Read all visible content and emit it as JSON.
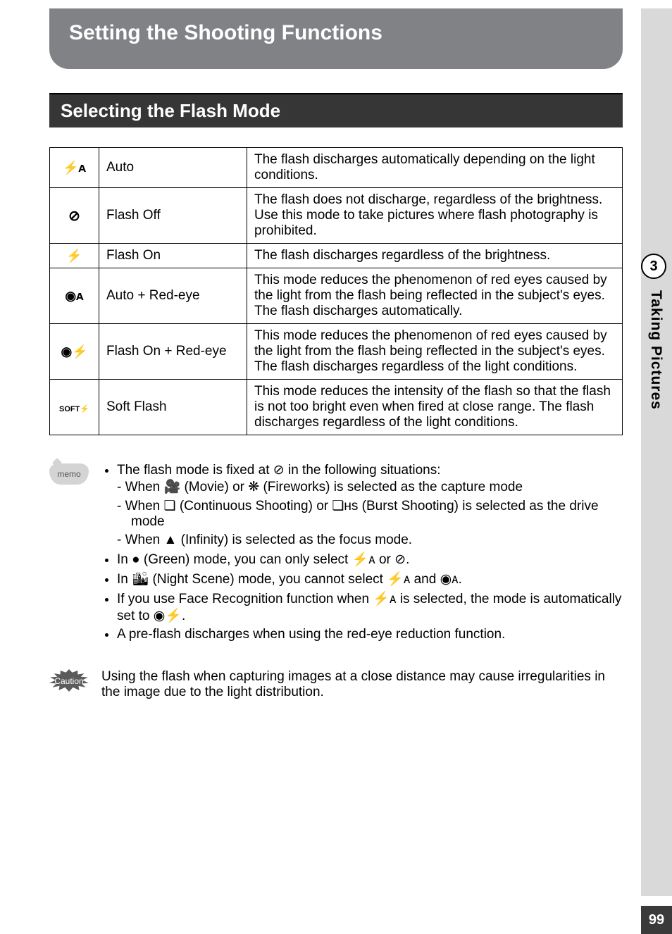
{
  "page": {
    "title": "Setting the Shooting Functions",
    "section": "Selecting the Flash Mode",
    "chapter_num": "3",
    "side_label": "Taking Pictures",
    "page_number": "99"
  },
  "table": {
    "rows": [
      {
        "icon": "⚡ᴀ",
        "name": "Auto",
        "desc": "The flash discharges automatically depending on the light conditions."
      },
      {
        "icon": "⊘",
        "name": "Flash Off",
        "desc": "The flash does not discharge, regardless of the brightness. Use this mode to take pictures where flash photography is prohibited."
      },
      {
        "icon": "⚡",
        "name": "Flash On",
        "desc": "The flash discharges regardless of the brightness."
      },
      {
        "icon": "◉ᴀ",
        "name": "Auto + Red-eye",
        "desc": "This mode reduces the phenomenon of red eyes caused by the light from the flash being reflected in the subject's eyes. The flash discharges automatically."
      },
      {
        "icon": "◉⚡",
        "name": "Flash On + Red-eye",
        "desc": "This mode reduces the phenomenon of red eyes caused by the light from the flash being reflected in the subject's eyes. The flash discharges regardless of the light conditions."
      },
      {
        "icon": "SOFT⚡",
        "name": "Soft Flash",
        "desc": "This mode reduces the intensity of the flash so that the flash is not too bright even when fired at close range. The flash discharges regardless of the light conditions."
      }
    ]
  },
  "memo": {
    "label": "memo",
    "b1_a": "The flash mode is fixed at ",
    "b1_b": " in the following situations:",
    "s1_a": "When ",
    "s1_b": " (Movie) or ",
    "s1_c": " (Fireworks) is selected as the capture mode",
    "s2_a": "When ",
    "s2_b": " (Continuous Shooting) or ",
    "s2_c": " (Burst Shooting) is selected as the drive mode",
    "s3_a": "When ",
    "s3_b": " (Infinity) is selected as the focus mode.",
    "b2_a": "In ",
    "b2_b": " (Green) mode, you can only select ",
    "b2_c": " or ",
    "b2_d": ".",
    "b3_a": "In ",
    "b3_b": " (Night Scene) mode, you cannot select ",
    "b3_c": " and ",
    "b3_d": ".",
    "b4_a": "If you use Face Recognition function when ",
    "b4_b": " is selected, the mode is automatically set to ",
    "b4_c": ".",
    "b5": "A pre-flash discharges when using the red-eye reduction function."
  },
  "caution": {
    "label": "Caution",
    "text": "Using the flash when capturing images at a close distance may cause irregularities in the image due to the light distribution."
  },
  "icons": {
    "flash_off": "⊘",
    "movie": "🎥",
    "fireworks": "❋",
    "continuous": "❏",
    "burst": "❏ʜs",
    "infinity": "▲",
    "green": "●",
    "flash_auto": "⚡ᴀ",
    "night": "🏙",
    "redeye_auto": "◉ᴀ",
    "redeye_on": "◉⚡"
  }
}
